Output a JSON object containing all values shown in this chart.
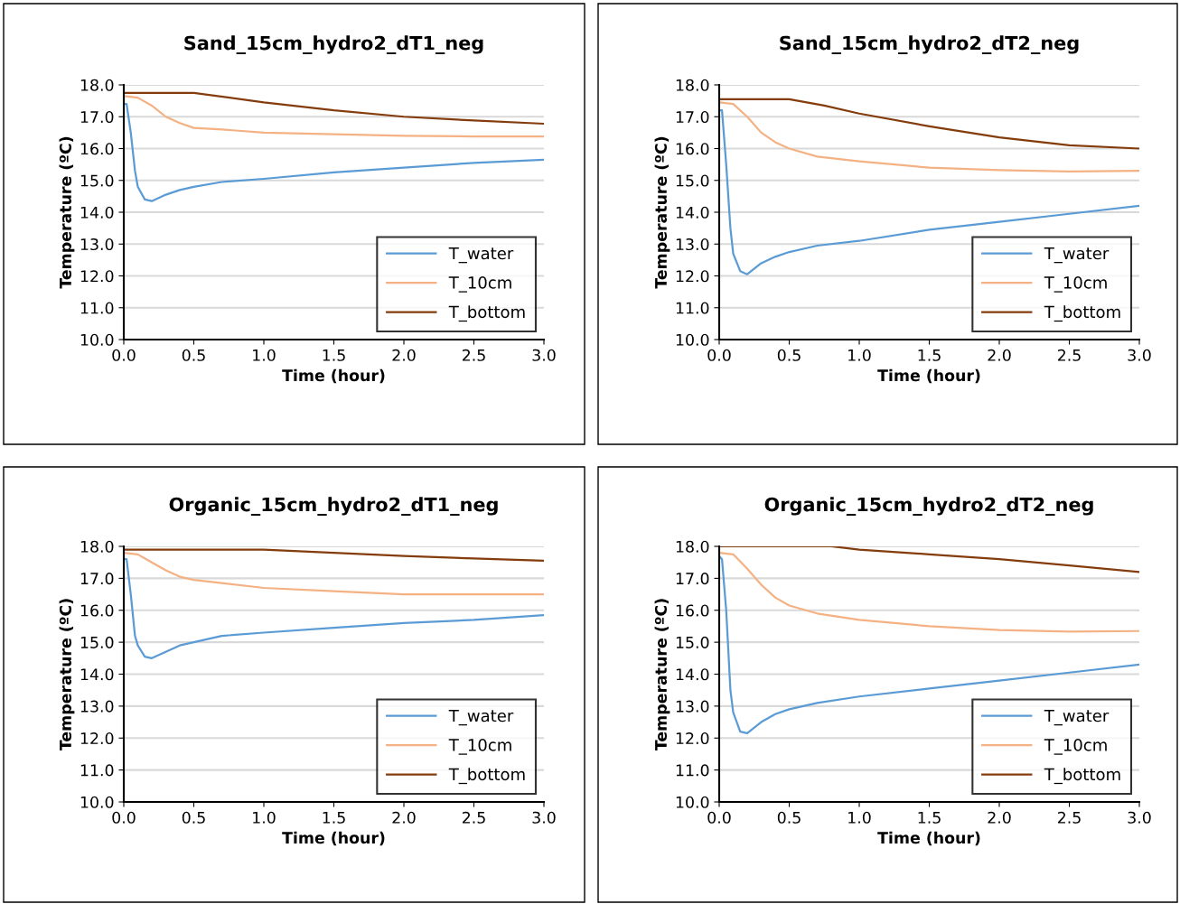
{
  "chart_data": [
    {
      "type": "line",
      "title": "Sand_15cm_hydro2_dT1_neg",
      "xlabel": "Time (hour)",
      "ylabel": "Temperature (ºC)",
      "legend": "bottom right",
      "grid": "y",
      "xlim": [
        0,
        3
      ],
      "ylim": [
        10,
        18
      ],
      "xticks": [
        {
          "value": 0,
          "label": "0.0"
        },
        {
          "value": 0.5,
          "label": "0.5"
        },
        {
          "value": 1,
          "label": "1.0"
        },
        {
          "value": 1.5,
          "label": "1.5"
        },
        {
          "value": 2,
          "label": "2.0"
        },
        {
          "value": 2.5,
          "label": "2.5"
        },
        {
          "value": 3,
          "label": "3.0"
        }
      ],
      "yticks": [
        {
          "value": 10,
          "label": "10.0"
        },
        {
          "value": 11,
          "label": "11.0"
        },
        {
          "value": 12,
          "label": "12.0"
        },
        {
          "value": 13,
          "label": "13.0"
        },
        {
          "value": 14,
          "label": "14.0"
        },
        {
          "value": 15,
          "label": "15.0"
        },
        {
          "value": 16,
          "label": "16.0"
        },
        {
          "value": 17,
          "label": "17.0"
        },
        {
          "value": 18,
          "label": "18.0"
        }
      ],
      "series": [
        {
          "name": "T_water",
          "color": "#5b9bd5",
          "x": [
            0,
            0.02,
            0.05,
            0.08,
            0.1,
            0.15,
            0.2,
            0.3,
            0.4,
            0.5,
            0.7,
            1.0,
            1.5,
            2.0,
            2.5,
            3.0
          ],
          "values": [
            17.4,
            17.4,
            16.5,
            15.3,
            14.8,
            14.4,
            14.35,
            14.55,
            14.7,
            14.8,
            14.95,
            15.05,
            15.25,
            15.4,
            15.55,
            15.65
          ]
        },
        {
          "name": "T_10cm",
          "color": "#f4b183",
          "x": [
            0,
            0.1,
            0.2,
            0.3,
            0.4,
            0.5,
            0.7,
            1.0,
            1.5,
            2.0,
            2.5,
            3.0
          ],
          "values": [
            17.65,
            17.6,
            17.35,
            17.0,
            16.8,
            16.65,
            16.6,
            16.5,
            16.45,
            16.4,
            16.38,
            16.38
          ]
        },
        {
          "name": "T_bottom",
          "color": "#843c0c",
          "x": [
            0,
            0.5,
            1.0,
            1.5,
            2.0,
            2.5,
            3.0
          ],
          "values": [
            17.75,
            17.75,
            17.45,
            17.2,
            17.0,
            16.88,
            16.78
          ]
        }
      ]
    },
    {
      "type": "line",
      "title": "Sand_15cm_hydro2_dT2_neg",
      "xlabel": "Time (hour)",
      "ylabel": "Temperature (ºC)",
      "legend": "bottom right",
      "grid": "y",
      "xlim": [
        0,
        3
      ],
      "ylim": [
        10,
        18
      ],
      "xticks": [
        {
          "value": 0,
          "label": "0.0"
        },
        {
          "value": 0.5,
          "label": "0.5"
        },
        {
          "value": 1,
          "label": "1.0"
        },
        {
          "value": 1.5,
          "label": "1.5"
        },
        {
          "value": 2,
          "label": "2.0"
        },
        {
          "value": 2.5,
          "label": "2.5"
        },
        {
          "value": 3,
          "label": "3.0"
        }
      ],
      "yticks": [
        {
          "value": 10,
          "label": "10.0"
        },
        {
          "value": 11,
          "label": "11.0"
        },
        {
          "value": 12,
          "label": "12.0"
        },
        {
          "value": 13,
          "label": "13.0"
        },
        {
          "value": 14,
          "label": "14.0"
        },
        {
          "value": 15,
          "label": "15.0"
        },
        {
          "value": 16,
          "label": "16.0"
        },
        {
          "value": 17,
          "label": "17.0"
        },
        {
          "value": 18,
          "label": "18.0"
        }
      ],
      "series": [
        {
          "name": "T_water",
          "color": "#5b9bd5",
          "x": [
            0,
            0.02,
            0.05,
            0.08,
            0.1,
            0.15,
            0.2,
            0.3,
            0.4,
            0.5,
            0.7,
            1.0,
            1.5,
            2.0,
            2.5,
            3.0
          ],
          "values": [
            17.2,
            17.2,
            15.5,
            13.5,
            12.7,
            12.15,
            12.05,
            12.4,
            12.6,
            12.75,
            12.95,
            13.1,
            13.45,
            13.7,
            13.95,
            14.2
          ]
        },
        {
          "name": "T_10cm",
          "color": "#f4b183",
          "x": [
            0,
            0.1,
            0.2,
            0.3,
            0.4,
            0.5,
            0.7,
            1.0,
            1.5,
            2.0,
            2.5,
            3.0
          ],
          "values": [
            17.45,
            17.4,
            17.0,
            16.5,
            16.2,
            16.0,
            15.75,
            15.6,
            15.4,
            15.32,
            15.28,
            15.3
          ]
        },
        {
          "name": "T_bottom",
          "color": "#843c0c",
          "x": [
            0,
            0.5,
            0.75,
            1.0,
            1.5,
            2.0,
            2.5,
            3.0
          ],
          "values": [
            17.55,
            17.55,
            17.35,
            17.1,
            16.7,
            16.35,
            16.1,
            16.0
          ]
        }
      ]
    },
    {
      "type": "line",
      "title": "Organic_15cm_hydro2_dT1_neg",
      "xlabel": "Time (hour)",
      "ylabel": "Temperature (ºC)",
      "legend": "bottom right",
      "grid": "y",
      "xlim": [
        0,
        3
      ],
      "ylim": [
        10,
        18
      ],
      "xticks": [
        {
          "value": 0,
          "label": "0.0"
        },
        {
          "value": 0.5,
          "label": "0.5"
        },
        {
          "value": 1,
          "label": "1.0"
        },
        {
          "value": 1.5,
          "label": "1.5"
        },
        {
          "value": 2,
          "label": "2.0"
        },
        {
          "value": 2.5,
          "label": "2.5"
        },
        {
          "value": 3,
          "label": "3.0"
        }
      ],
      "yticks": [
        {
          "value": 10,
          "label": "10.0"
        },
        {
          "value": 11,
          "label": "11.0"
        },
        {
          "value": 12,
          "label": "12.0"
        },
        {
          "value": 13,
          "label": "13.0"
        },
        {
          "value": 14,
          "label": "14.0"
        },
        {
          "value": 15,
          "label": "15.0"
        },
        {
          "value": 16,
          "label": "16.0"
        },
        {
          "value": 17,
          "label": "17.0"
        },
        {
          "value": 18,
          "label": "18.0"
        }
      ],
      "series": [
        {
          "name": "T_water",
          "color": "#5b9bd5",
          "x": [
            0,
            0.02,
            0.05,
            0.08,
            0.1,
            0.15,
            0.2,
            0.3,
            0.4,
            0.5,
            0.7,
            1.0,
            1.5,
            2.0,
            2.5,
            3.0
          ],
          "values": [
            17.6,
            17.6,
            16.5,
            15.2,
            14.9,
            14.55,
            14.5,
            14.7,
            14.9,
            15.0,
            15.2,
            15.3,
            15.45,
            15.6,
            15.7,
            15.85
          ]
        },
        {
          "name": "T_10cm",
          "color": "#f4b183",
          "x": [
            0,
            0.1,
            0.2,
            0.3,
            0.4,
            0.5,
            0.7,
            1.0,
            1.5,
            2.0,
            2.5,
            3.0
          ],
          "values": [
            17.8,
            17.75,
            17.5,
            17.25,
            17.05,
            16.95,
            16.85,
            16.7,
            16.6,
            16.5,
            16.5,
            16.5
          ]
        },
        {
          "name": "T_bottom",
          "color": "#843c0c",
          "x": [
            0,
            1.0,
            1.5,
            2.0,
            2.5,
            3.0
          ],
          "values": [
            17.9,
            17.9,
            17.8,
            17.7,
            17.62,
            17.55
          ]
        }
      ]
    },
    {
      "type": "line",
      "title": "Organic_15cm_hydro2_dT2_neg",
      "xlabel": "Time (hour)",
      "ylabel": "Temperature (ºC)",
      "legend": "bottom right",
      "grid": "y",
      "xlim": [
        0,
        3
      ],
      "ylim": [
        10,
        18
      ],
      "xticks": [
        {
          "value": 0,
          "label": "0.0"
        },
        {
          "value": 0.5,
          "label": "0.5"
        },
        {
          "value": 1,
          "label": "1.0"
        },
        {
          "value": 1.5,
          "label": "1.5"
        },
        {
          "value": 2,
          "label": "2.0"
        },
        {
          "value": 2.5,
          "label": "2.5"
        },
        {
          "value": 3,
          "label": "3.0"
        }
      ],
      "yticks": [
        {
          "value": 10,
          "label": "10.0"
        },
        {
          "value": 11,
          "label": "11.0"
        },
        {
          "value": 12,
          "label": "12.0"
        },
        {
          "value": 13,
          "label": "13.0"
        },
        {
          "value": 14,
          "label": "14.0"
        },
        {
          "value": 15,
          "label": "15.0"
        },
        {
          "value": 16,
          "label": "16.0"
        },
        {
          "value": 17,
          "label": "17.0"
        },
        {
          "value": 18,
          "label": "18.0"
        }
      ],
      "series": [
        {
          "name": "T_water",
          "color": "#5b9bd5",
          "x": [
            0,
            0.02,
            0.05,
            0.08,
            0.1,
            0.15,
            0.2,
            0.3,
            0.4,
            0.5,
            0.7,
            1.0,
            1.5,
            2.0,
            2.5,
            3.0
          ],
          "values": [
            17.7,
            17.6,
            16.0,
            13.5,
            12.8,
            12.2,
            12.15,
            12.5,
            12.75,
            12.9,
            13.1,
            13.3,
            13.55,
            13.8,
            14.05,
            14.3
          ]
        },
        {
          "name": "T_10cm",
          "color": "#f4b183",
          "x": [
            0,
            0.1,
            0.2,
            0.3,
            0.4,
            0.5,
            0.7,
            1.0,
            1.5,
            2.0,
            2.5,
            3.0
          ],
          "values": [
            17.8,
            17.75,
            17.3,
            16.8,
            16.4,
            16.15,
            15.9,
            15.7,
            15.5,
            15.38,
            15.33,
            15.35
          ]
        },
        {
          "name": "T_bottom",
          "color": "#843c0c",
          "x": [
            0,
            0.8,
            1.0,
            1.5,
            2.0,
            2.5,
            3.0
          ],
          "values": [
            18.0,
            18.0,
            17.9,
            17.75,
            17.6,
            17.4,
            17.2
          ]
        }
      ]
    }
  ]
}
